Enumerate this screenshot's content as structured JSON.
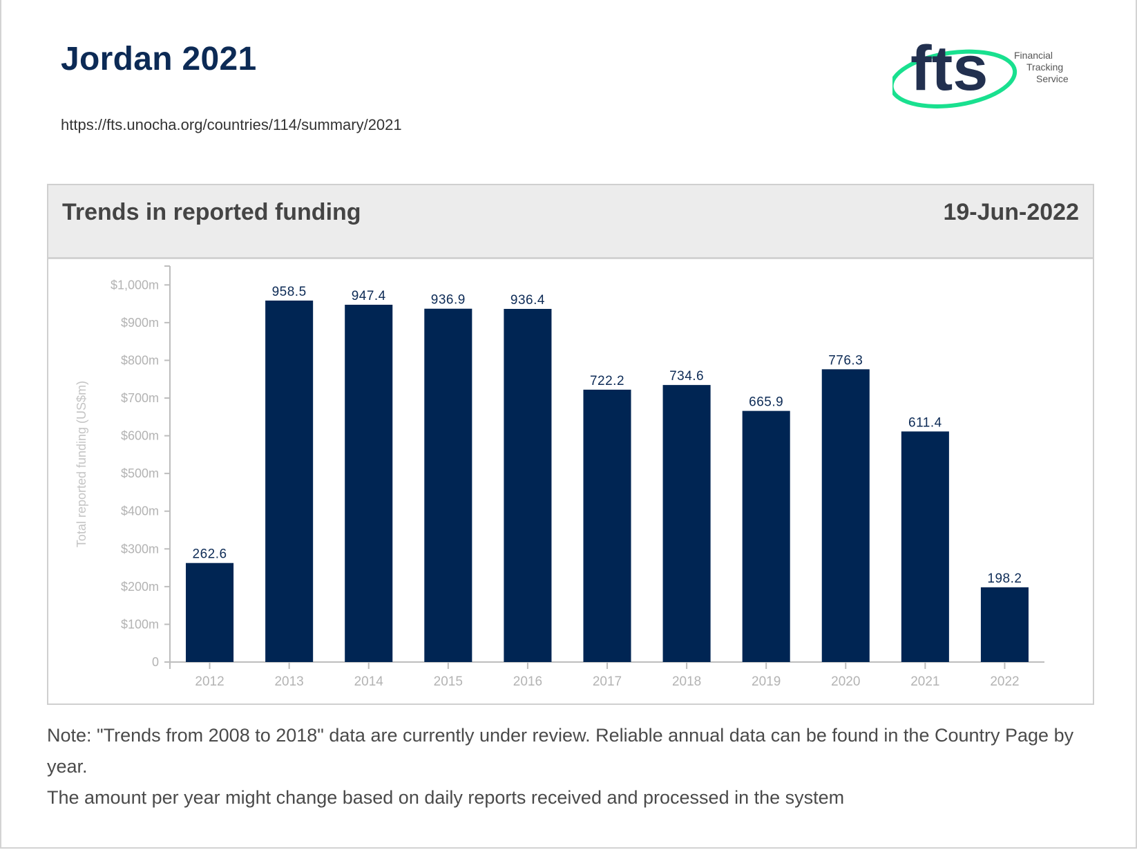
{
  "page": {
    "title": "Jordan 2021",
    "url": "https://fts.unocha.org/countries/114/summary/2021"
  },
  "logo": {
    "mark": "fts",
    "line1": "Financial",
    "line2": "Tracking",
    "line3": "Service"
  },
  "panel": {
    "title": "Trends in reported funding",
    "date": "19-Jun-2022"
  },
  "notes": {
    "line1": "Note: \"Trends from 2008 to 2018\" data are currently under review. Reliable annual data can be found in the Country Page by year.",
    "line2": "The amount per year might change based on daily reports received and processed in the system"
  },
  "colors": {
    "bar": "#002553",
    "title": "#0c2a55",
    "axis_text": "#b3b3b3",
    "logo_green": "#19e08f"
  },
  "chart_data": {
    "type": "bar",
    "categories": [
      "2012",
      "2013",
      "2014",
      "2015",
      "2016",
      "2017",
      "2018",
      "2019",
      "2020",
      "2021",
      "2022"
    ],
    "values": [
      262.6,
      958.5,
      947.4,
      936.9,
      936.4,
      722.2,
      734.6,
      665.9,
      776.3,
      611.4,
      198.2
    ],
    "data_labels": [
      "262.6",
      "958.5",
      "947.4",
      "936.9",
      "936.4",
      "722.2",
      "734.6",
      "665.9",
      "776.3",
      "611.4",
      "198.2"
    ],
    "ylabel": "Total reported funding (US$m)",
    "xlabel": "",
    "ylim": [
      0,
      1050
    ],
    "y_ticks": [
      0,
      100,
      200,
      300,
      400,
      500,
      600,
      700,
      800,
      900,
      1000
    ],
    "y_tick_labels": [
      "0",
      "$100m",
      "$200m",
      "$300m",
      "$400m",
      "$500m",
      "$600m",
      "$700m",
      "$800m",
      "$900m",
      "$1,000m"
    ],
    "grid": false,
    "legend": "none"
  }
}
